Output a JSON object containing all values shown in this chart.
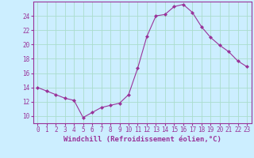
{
  "x": [
    0,
    1,
    2,
    3,
    4,
    5,
    6,
    7,
    8,
    9,
    10,
    11,
    12,
    13,
    14,
    15,
    16,
    17,
    18,
    19,
    20,
    21,
    22,
    23
  ],
  "y": [
    14.0,
    13.5,
    13.0,
    12.5,
    12.2,
    9.8,
    10.5,
    11.2,
    11.5,
    11.8,
    13.0,
    16.7,
    21.1,
    24.0,
    24.2,
    25.3,
    25.6,
    24.5,
    22.5,
    21.0,
    19.9,
    19.0,
    17.7,
    16.9
  ],
  "line_color": "#993399",
  "marker": "D",
  "marker_size": 2.0,
  "background_color": "#cceeff",
  "grid_color": "#aaddcc",
  "xlabel": "Windchill (Refroidissement éolien,°C)",
  "ylim": [
    9,
    26
  ],
  "xlim": [
    -0.5,
    23.5
  ],
  "yticks": [
    10,
    12,
    14,
    16,
    18,
    20,
    22,
    24
  ],
  "xtick_labels": [
    "0",
    "1",
    "2",
    "3",
    "4",
    "5",
    "6",
    "7",
    "8",
    "9",
    "10",
    "11",
    "12",
    "13",
    "14",
    "15",
    "16",
    "17",
    "18",
    "19",
    "20",
    "21",
    "22",
    "23"
  ],
  "tick_color": "#993399",
  "label_color": "#993399",
  "label_fontsize": 6.5,
  "tick_fontsize": 5.5,
  "spine_color": "#993399"
}
